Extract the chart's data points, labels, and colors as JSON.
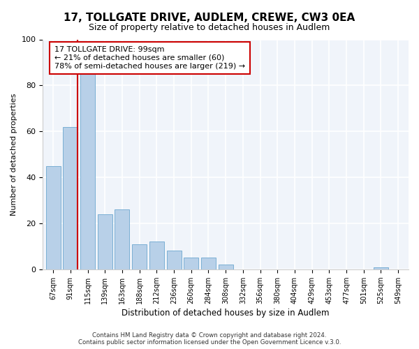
{
  "title": "17, TOLLGATE DRIVE, AUDLEM, CREWE, CW3 0EA",
  "subtitle": "Size of property relative to detached houses in Audlem",
  "xlabel": "Distribution of detached houses by size in Audlem",
  "ylabel": "Number of detached properties",
  "bar_labels": [
    "67sqm",
    "91sqm",
    "115sqm",
    "139sqm",
    "163sqm",
    "188sqm",
    "212sqm",
    "236sqm",
    "260sqm",
    "284sqm",
    "308sqm",
    "332sqm",
    "356sqm",
    "380sqm",
    "404sqm",
    "429sqm",
    "453sqm",
    "477sqm",
    "501sqm",
    "525sqm",
    "549sqm"
  ],
  "bar_values": [
    45,
    62,
    85,
    24,
    26,
    11,
    12,
    8,
    5,
    5,
    2,
    0,
    0,
    0,
    0,
    0,
    0,
    0,
    0,
    1,
    0
  ],
  "bar_color": "#b8d0e8",
  "bar_edge_color": "#7aafd4",
  "vline_color": "#cc0000",
  "annotation_lines": [
    "17 TOLLGATE DRIVE: 99sqm",
    "← 21% of detached houses are smaller (60)",
    "78% of semi-detached houses are larger (219) →"
  ],
  "annotation_box_color": "#ffffff",
  "annotation_box_edge": "#cc0000",
  "ylim": [
    0,
    100
  ],
  "footer_lines": [
    "Contains HM Land Registry data © Crown copyright and database right 2024.",
    "Contains public sector information licensed under the Open Government Licence v.3.0."
  ],
  "bg_color": "#ffffff",
  "plot_bg_color": "#f0f4fa",
  "grid_color": "#d0d8e8"
}
